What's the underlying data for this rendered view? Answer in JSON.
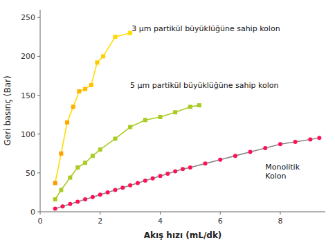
{
  "chart_data": {
    "type": "line",
    "x_label": "Akış hızı (mL/dk)",
    "y_label": "Geri basınç (Bar)",
    "xlim": [
      0,
      9.5
    ],
    "ylim": [
      0,
      260
    ],
    "xticks": [
      0,
      2,
      4,
      6,
      8
    ],
    "yticks": [
      0,
      50,
      100,
      150,
      200,
      250
    ],
    "grid": false,
    "series": [
      {
        "x": [
          0.5,
          0.7,
          0.9,
          1.1,
          1.3,
          1.5,
          1.7,
          1.9,
          2.1,
          2.5,
          3.0
        ],
        "values": [
          37,
          75,
          115,
          135,
          155,
          158,
          163,
          192,
          200,
          225,
          230
        ],
        "color": "#ffdd00",
        "colors": [
          "#ff9900",
          "#ffa000",
          "#ffa700",
          "#ffae00",
          "#ffb500",
          "#ffbb00",
          "#ffc200",
          "#ffc900",
          "#ffd000",
          "#ffd700",
          "#ffde00"
        ],
        "marker": "square"
      },
      {
        "x": [
          0.5,
          0.7,
          1.0,
          1.25,
          1.5,
          1.75,
          2.0,
          2.5,
          3.0,
          3.5,
          4.0,
          4.5,
          5.0,
          5.3
        ],
        "values": [
          16,
          28,
          44,
          57,
          63,
          72,
          80,
          94,
          109,
          118,
          122,
          128,
          135,
          137
        ],
        "color": "#aacc22",
        "marker": "square"
      },
      {
        "x": [
          0.5,
          0.75,
          1.0,
          1.25,
          1.5,
          1.75,
          2.0,
          2.25,
          2.5,
          2.75,
          3.0,
          3.25,
          3.5,
          3.75,
          4.0,
          4.25,
          4.5,
          4.75,
          5.0,
          5.5,
          6.0,
          6.5,
          7.0,
          7.5,
          8.0,
          8.5,
          9.0,
          9.3
        ],
        "values": [
          4,
          7,
          10,
          13,
          16,
          19,
          22,
          25,
          28,
          31,
          34,
          37,
          40,
          43,
          46,
          49,
          52,
          55,
          57,
          62,
          67,
          72,
          77,
          82,
          87,
          90,
          93,
          95
        ],
        "color": "#888888",
        "colors": [
          "#ff1155",
          "#ff1155",
          "#ff1155",
          "#ff1155",
          "#ff1155",
          "#ff1155",
          "#ff1155",
          "#ff1155",
          "#ff1155",
          "#ff1155",
          "#ff1155",
          "#ff1155",
          "#ff1155",
          "#ff1155",
          "#ff1155",
          "#ff1155",
          "#ff1155",
          "#ff1155",
          "#ff1155",
          "#ff1155",
          "#ff1155",
          "#ff1155",
          "#ff1155",
          "#ff1155",
          "#ff1155",
          "#ff1155",
          "#ff1155",
          "#ff1155"
        ],
        "marker": "circle"
      }
    ],
    "annotations": [
      {
        "text": "3 μm partikül büyüklüğüne sahip kolon",
        "x": 3.05,
        "y": 236
      },
      {
        "text": "5 μm partikül büyüklüğüne sahip kolon",
        "x": 3.0,
        "y": 163
      },
      {
        "text": "Monolitik\nKolon",
        "x": 7.5,
        "y": 52
      }
    ]
  }
}
